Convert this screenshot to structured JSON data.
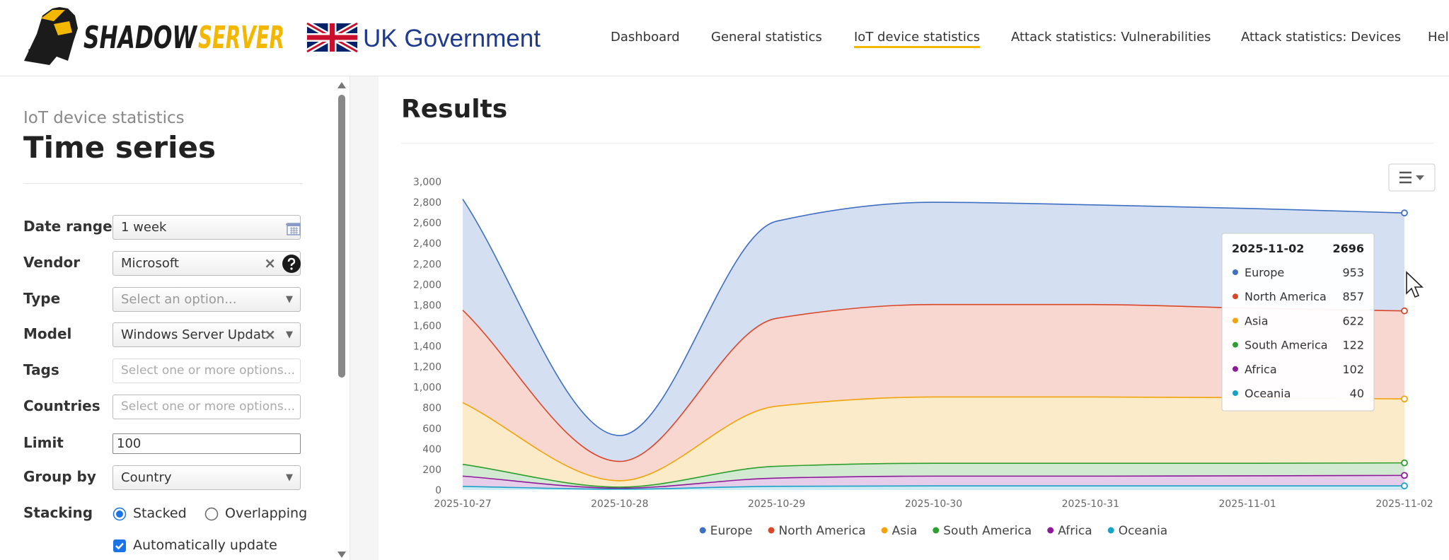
{
  "header": {
    "logo": [
      "SHADOW",
      "SERVER"
    ],
    "partner": "UK Government",
    "nav": [
      "Dashboard",
      "General statistics",
      "IoT device statistics",
      "Attack statistics: Vulnerabilities",
      "Attack statistics: Devices",
      "Hel"
    ],
    "active_nav": 2
  },
  "sidebar": {
    "subtitle": "IoT device statistics",
    "title": "Time series",
    "fields": [
      {
        "label": "Date range",
        "value": "1 week"
      },
      {
        "label": "Vendor",
        "value": "Microsoft"
      },
      {
        "label": "Type",
        "placeholder": "Select an option..."
      },
      {
        "label": "Model",
        "value": "Windows Server Updat"
      },
      {
        "label": "Tags",
        "placeholder": "Select one or more options..."
      },
      {
        "label": "Countries",
        "placeholder": "Select one or more options..."
      },
      {
        "label": "Limit",
        "value": "100"
      },
      {
        "label": "Group by",
        "value": "Country"
      },
      {
        "label": "Stacking",
        "options": [
          "Stacked",
          "Overlapping"
        ]
      }
    ],
    "checkbox": "Automatically update"
  },
  "results_title": "Results",
  "chart_data": {
    "type": "area",
    "stacked": true,
    "x": [
      "2025-10-27",
      "2025-10-28",
      "2025-10-29",
      "2025-10-30",
      "2025-10-31",
      "2025-11-01",
      "2025-11-02"
    ],
    "series": [
      {
        "name": "Europe",
        "color": "#3f6fc2",
        "values": [
          1080,
          252,
          945,
          995,
          970,
          970,
          953
        ]
      },
      {
        "name": "North America",
        "color": "#d9472b",
        "values": [
          900,
          188,
          855,
          900,
          900,
          872,
          857
        ]
      },
      {
        "name": "Asia",
        "color": "#f0a30a",
        "values": [
          600,
          62,
          585,
          645,
          645,
          638,
          622
        ]
      },
      {
        "name": "South America",
        "color": "#2e9e2e",
        "values": [
          115,
          10,
          115,
          125,
          125,
          122,
          122
        ]
      },
      {
        "name": "Africa",
        "color": "#8e1a9a",
        "values": [
          100,
          10,
          80,
          95,
          95,
          98,
          102
        ]
      },
      {
        "name": "Oceania",
        "color": "#1aa3c8",
        "values": [
          35,
          8,
          36,
          40,
          40,
          40,
          40
        ]
      }
    ],
    "ylim": [
      0,
      3000
    ],
    "yticks": [
      0,
      200,
      400,
      600,
      800,
      {
        "value": 1000,
        "label": "1,000"
      },
      {
        "value": 1200,
        "label": "1,200"
      },
      {
        "value": 1400,
        "label": "1,400"
      },
      {
        "value": 1600,
        "label": "1,600"
      },
      {
        "value": 1800,
        "label": "1,800"
      },
      {
        "value": 2000,
        "label": "2,000"
      },
      {
        "value": 2200,
        "label": "2,200"
      },
      {
        "value": 2400,
        "label": "2,400"
      },
      {
        "value": 2600,
        "label": "2,600"
      },
      {
        "value": 2800,
        "label": "2,800"
      },
      {
        "value": 3000,
        "label": "3,000"
      }
    ],
    "grid": false,
    "legend": "bottom",
    "tooltip_total": 2696
  }
}
